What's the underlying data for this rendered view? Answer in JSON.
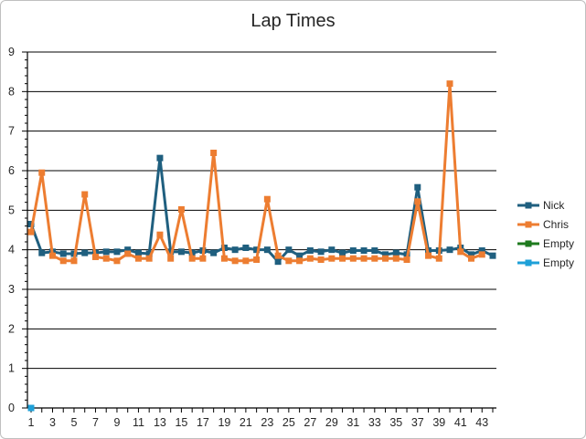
{
  "chart_data": {
    "type": "line",
    "title": "Lap Times",
    "xlabel": "",
    "ylabel": "",
    "ylim": [
      0,
      9
    ],
    "xlim": [
      1,
      44
    ],
    "y_ticks": [
      "0",
      "1",
      "2",
      "3",
      "4",
      "5",
      "6",
      "7",
      "8",
      "9"
    ],
    "x_ticks": [
      "1",
      "3",
      "5",
      "7",
      "9",
      "11",
      "13",
      "15",
      "17",
      "19",
      "21",
      "23",
      "25",
      "27",
      "29",
      "31",
      "33",
      "35",
      "37",
      "39",
      "41",
      "43"
    ],
    "grid": "horizontal major",
    "legend": "right",
    "series": [
      {
        "name": "Nick",
        "color": "#1f5f7f",
        "x": [
          1,
          2,
          3,
          4,
          5,
          6,
          7,
          8,
          9,
          10,
          11,
          12,
          13,
          14,
          15,
          16,
          17,
          18,
          19,
          20,
          21,
          22,
          23,
          24,
          25,
          26,
          27,
          28,
          29,
          30,
          31,
          32,
          33,
          34,
          35,
          36,
          37,
          38,
          39,
          40,
          41,
          42,
          43,
          44
        ],
        "y": [
          4.65,
          3.92,
          3.95,
          3.9,
          3.9,
          3.92,
          3.92,
          3.95,
          3.95,
          4.0,
          3.92,
          3.9,
          6.32,
          3.95,
          3.95,
          3.92,
          3.98,
          3.92,
          4.05,
          4.0,
          4.05,
          4.0,
          4.0,
          3.7,
          4.0,
          3.85,
          3.98,
          3.95,
          4.0,
          3.92,
          3.98,
          3.98,
          3.98,
          3.88,
          3.92,
          3.88,
          5.58,
          3.98,
          3.98,
          4.0,
          4.05,
          3.88,
          3.98,
          3.85
        ]
      },
      {
        "name": "Chris",
        "color": "#ed7d31",
        "x": [
          1,
          2,
          3,
          4,
          5,
          6,
          7,
          8,
          9,
          10,
          11,
          12,
          13,
          14,
          15,
          16,
          17,
          18,
          19,
          20,
          21,
          22,
          23,
          24,
          25,
          26,
          27,
          28,
          29,
          30,
          31,
          32,
          33,
          34,
          35,
          36,
          37,
          38,
          39,
          40,
          41,
          42,
          43
        ],
        "y": [
          4.45,
          5.95,
          3.85,
          3.72,
          3.72,
          5.4,
          3.82,
          3.78,
          3.72,
          3.9,
          3.78,
          3.78,
          4.38,
          3.78,
          5.02,
          3.78,
          3.78,
          6.45,
          3.78,
          3.72,
          3.72,
          3.75,
          5.28,
          3.85,
          3.72,
          3.72,
          3.78,
          3.75,
          3.78,
          3.78,
          3.78,
          3.78,
          3.78,
          3.78,
          3.78,
          3.75,
          5.22,
          3.85,
          3.78,
          8.2,
          3.95,
          3.78,
          3.88
        ]
      },
      {
        "name": "Empty",
        "color": "#1e7a1e",
        "x": [],
        "y": []
      },
      {
        "name": "Empty",
        "color": "#1ea0d8",
        "x": [
          1
        ],
        "y": [
          0
        ]
      }
    ]
  }
}
